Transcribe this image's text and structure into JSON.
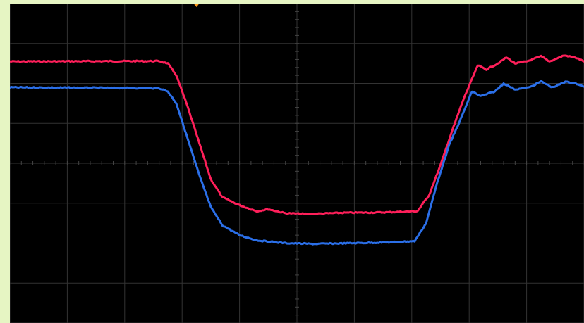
{
  "colors": {
    "bezel": "#e6f5c3",
    "screen": "#000000",
    "grid": "#333333",
    "trigger_marker": "#ff9a1a"
  },
  "chart_data": {
    "type": "line",
    "title": "",
    "xlabel": "",
    "ylabel": "",
    "grid": true,
    "x_divisions": 10,
    "y_divisions": 8,
    "xlim": [
      0,
      10
    ],
    "ylim": [
      -4,
      4
    ],
    "series": [
      {
        "color": "#ff1f5a",
        "points": [
          [
            0.0,
            2.55
          ],
          [
            2.6,
            2.56
          ],
          [
            2.75,
            2.5
          ],
          [
            2.9,
            2.2
          ],
          [
            3.1,
            1.4
          ],
          [
            3.3,
            0.5
          ],
          [
            3.5,
            -0.4
          ],
          [
            3.7,
            -0.85
          ],
          [
            4.0,
            -1.05
          ],
          [
            4.3,
            -1.2
          ],
          [
            4.5,
            -1.15
          ],
          [
            4.8,
            -1.25
          ],
          [
            5.2,
            -1.27
          ],
          [
            5.8,
            -1.24
          ],
          [
            6.5,
            -1.23
          ],
          [
            7.1,
            -1.2
          ],
          [
            7.3,
            -0.8
          ],
          [
            7.5,
            -0.05
          ],
          [
            7.7,
            0.8
          ],
          [
            7.9,
            1.6
          ],
          [
            8.15,
            2.45
          ],
          [
            8.3,
            2.35
          ],
          [
            8.5,
            2.5
          ],
          [
            8.65,
            2.65
          ],
          [
            8.8,
            2.5
          ],
          [
            9.0,
            2.55
          ],
          [
            9.25,
            2.68
          ],
          [
            9.4,
            2.55
          ],
          [
            9.65,
            2.7
          ],
          [
            9.85,
            2.65
          ],
          [
            10.0,
            2.55
          ]
        ]
      },
      {
        "color": "#2b6fe8",
        "points": [
          [
            0.0,
            1.9
          ],
          [
            2.6,
            1.88
          ],
          [
            2.75,
            1.8
          ],
          [
            2.9,
            1.5
          ],
          [
            3.1,
            0.6
          ],
          [
            3.3,
            -0.3
          ],
          [
            3.5,
            -1.1
          ],
          [
            3.7,
            -1.55
          ],
          [
            4.0,
            -1.8
          ],
          [
            4.3,
            -1.93
          ],
          [
            4.8,
            -2.0
          ],
          [
            5.3,
            -2.02
          ],
          [
            6.0,
            -2.0
          ],
          [
            6.6,
            -1.98
          ],
          [
            7.05,
            -1.95
          ],
          [
            7.25,
            -1.5
          ],
          [
            7.45,
            -0.45
          ],
          [
            7.65,
            0.45
          ],
          [
            7.85,
            1.1
          ],
          [
            8.05,
            1.8
          ],
          [
            8.2,
            1.68
          ],
          [
            8.45,
            1.8
          ],
          [
            8.6,
            2.0
          ],
          [
            8.8,
            1.85
          ],
          [
            9.05,
            1.9
          ],
          [
            9.25,
            2.05
          ],
          [
            9.45,
            1.9
          ],
          [
            9.7,
            2.05
          ],
          [
            9.9,
            1.98
          ],
          [
            10.0,
            1.92
          ]
        ]
      }
    ]
  }
}
